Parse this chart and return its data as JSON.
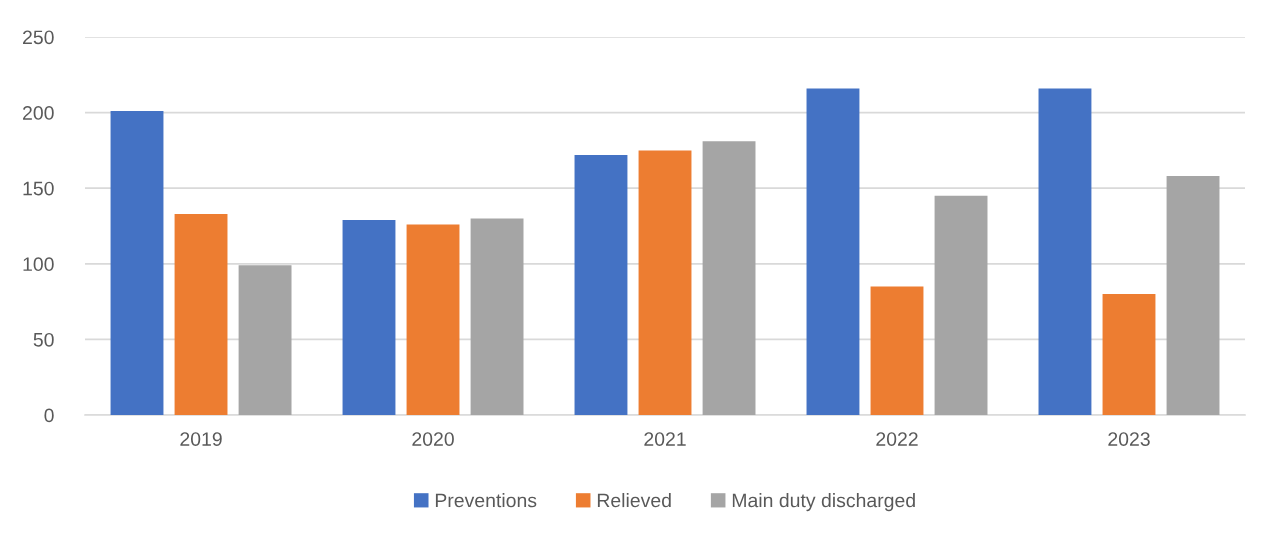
{
  "chart_data": {
    "type": "bar",
    "categories": [
      "2019",
      "2020",
      "2021",
      "2022",
      "2023"
    ],
    "series": [
      {
        "name": "Preventions",
        "color": "#4472c4",
        "values": [
          201,
          129,
          172,
          216,
          216
        ]
      },
      {
        "name": "Relieved",
        "color": "#ed7d31",
        "values": [
          133,
          126,
          175,
          85,
          80
        ]
      },
      {
        "name": "Main duty discharged",
        "color": "#a5a5a5",
        "values": [
          99,
          130,
          181,
          145,
          158
        ]
      }
    ],
    "ylim": [
      0,
      250
    ],
    "yticks": [
      0,
      50,
      100,
      150,
      200,
      250
    ],
    "grid": "y",
    "legend": "bottom"
  }
}
